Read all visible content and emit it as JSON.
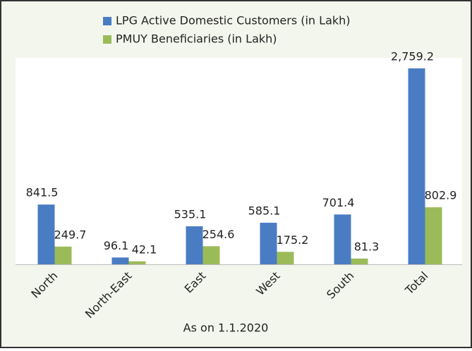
{
  "chart_data": {
    "type": "bar",
    "x_label": "As on 1.1.2020",
    "categories": [
      "North",
      "North-East",
      "East",
      "West",
      "South",
      "Total"
    ],
    "series": [
      {
        "name": "LPG Active Domestic Customers (in Lakh)",
        "color": "#4a7cc3",
        "values": [
          841.5,
          96.1,
          535.1,
          585.1,
          701.4,
          2759.2
        ],
        "value_labels": [
          "841.5",
          "96.1",
          "535.1",
          "585.1",
          "701.4",
          "2,759.2"
        ]
      },
      {
        "name": "PMUY Beneficiaries (in Lakh)",
        "color": "#9bbb59",
        "values": [
          249.7,
          42.1,
          254.6,
          175.2,
          81.3,
          802.9
        ]
      }
    ],
    "legend": "top"
  }
}
